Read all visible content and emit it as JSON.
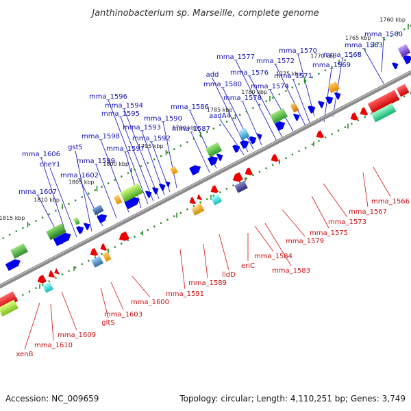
{
  "title": "Janthinobacterium sp. Marseille, complete genome",
  "footer": {
    "accession": "Accession: NC_009659",
    "summary": "Topology: circular; Length: 4,110,251 bp; Genes: 3,749"
  },
  "colors": {
    "forward_label": "#1010b8",
    "reverse_label": "#cc1010",
    "backbone": "#888888",
    "ruler": "#2a8a2a"
  },
  "scale": [
    {
      "text": "1760 kbp",
      "kb": 1760
    },
    {
      "text": "1765 kbp",
      "kb": 1765
    },
    {
      "text": "1770 kbp",
      "kb": 1770
    },
    {
      "text": "1775 kbp",
      "kb": 1775
    },
    {
      "text": "1780 kbp",
      "kb": 1780
    },
    {
      "text": "1785 kbp",
      "kb": 1785
    },
    {
      "text": "1790 kbp",
      "kb": 1790
    },
    {
      "text": "1795 kbp",
      "kb": 1795
    },
    {
      "text": "1800 kbp",
      "kb": 1800
    },
    {
      "text": "1805 kbp",
      "kb": 1805
    },
    {
      "text": "1810 kbp",
      "kb": 1810
    },
    {
      "text": "1815 kbp",
      "kb": 1815
    }
  ],
  "forward_labels": [
    "mma_1560",
    "mma_1563",
    "mma_1568",
    "mma_1569",
    "mma_1570",
    "mma_1571",
    "mma_1572",
    "mma_1574",
    "mma_1576",
    "mma_1577",
    "mma_1578",
    "mma_1580",
    "add",
    "aadA4",
    "mma_1586",
    "mma_1587",
    "mma_1590",
    "mma_1592",
    "mma_1593",
    "mma_1594",
    "mma_1595",
    "mma_1596",
    "mma_1597",
    "mma_1598",
    "mma_1599",
    "mma_1602",
    "gst5",
    "cheY1",
    "mma_1606",
    "mma_1607"
  ],
  "reverse_labels": [
    "mma_1566",
    "mma_1567",
    "mma_1573",
    "mma_1575",
    "mma_1579",
    "mma_1583",
    "mma_1584",
    "eriC",
    "lldD",
    "mma_1589",
    "mma_1591",
    "mma_1600",
    "mma_1603",
    "gltS",
    "mma_1609",
    "mma_1610",
    "xenB"
  ]
}
